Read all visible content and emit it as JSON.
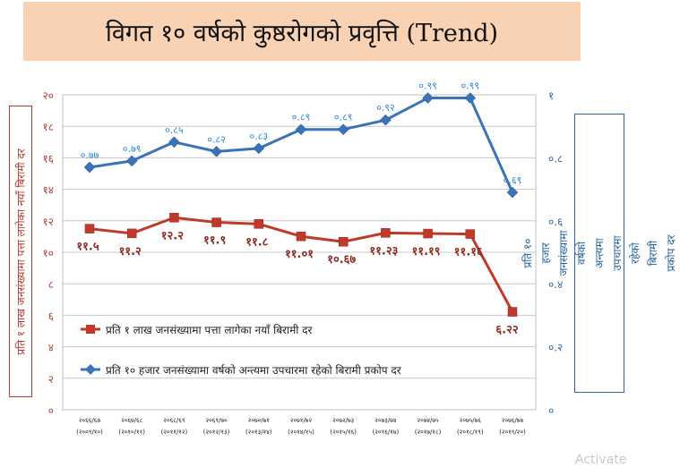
{
  "title": "विगत १० वर्षको कुष्ठरोगको प्रवृत्ति (Trend)",
  "watermark": "Activate",
  "chart_data": {
    "type": "line",
    "categories": [
      [
        "२०६६/६७",
        "(२००९/१०)"
      ],
      [
        "२०६७/६८",
        "(२०१०/११)"
      ],
      [
        "२०६८/६९",
        "(२०११/१२)"
      ],
      [
        "२०६९/७०",
        "(२०१२/१३)"
      ],
      [
        "२०७०/७१",
        "(२०१३/१४)"
      ],
      [
        "२०७१/७२",
        "(२०१४/१५)"
      ],
      [
        "२०७२/७३",
        "(२०१५/१६)"
      ],
      [
        "२०७३/७४",
        "(२०१६/१७)"
      ],
      [
        "२०७४/७५",
        "(२०१७/१८)"
      ],
      [
        "२०७५/७६",
        "(२०१८/१९)"
      ],
      [
        "२०७६/७७",
        "(२०१९/२०)"
      ]
    ],
    "series": [
      {
        "name": "प्रति १ लाख जनसंख्यामा पत्ता लागेका नयाँ बिरामी दर",
        "axis": "left",
        "color": "#c0392b",
        "marker": "square",
        "values": [
          11.5,
          11.2,
          12.2,
          11.9,
          11.8,
          11.01,
          10.67,
          11.23,
          11.19,
          11.16,
          6.22
        ],
        "labels": [
          "११.५",
          "११.२",
          "१२.२",
          "११.९",
          "११.८",
          "११.०१",
          "१०.६७",
          "११.२३",
          "११.१९",
          "११.१६",
          "६.२२"
        ]
      },
      {
        "name": "प्रति १० हजार जनसंख्यामा वर्षको अन्त्यमा उपचारमा रहेको बिरामी प्रकोप  दर",
        "axis": "right",
        "color": "#3b73b9",
        "marker": "diamond",
        "values": [
          0.77,
          0.79,
          0.85,
          0.82,
          0.83,
          0.89,
          0.89,
          0.92,
          0.99,
          0.99,
          0.69
        ],
        "labels": [
          "०.७७",
          "०.७९",
          "०.८५",
          "०.८२",
          "०.८३",
          "०.८९",
          "०.८९",
          "०.९२",
          "०.९९",
          "०.९९",
          "०.६९"
        ]
      }
    ],
    "y_left": {
      "label": "प्रति १ लाख जनसंख्यामा पत्ता लागेका नयाँ बिरामी दर",
      "ylim": [
        0,
        20
      ],
      "ticks": [
        0,
        2,
        4,
        6,
        8,
        10,
        12,
        14,
        16,
        18,
        20
      ],
      "tick_labels": [
        "०",
        "२",
        "४",
        "६",
        "८",
        "१०",
        "१२",
        "१४",
        "१६",
        "१८",
        "२०"
      ],
      "color": "#b03a2e"
    },
    "y_right": {
      "label": "प्रति १० हजार जनसंख्यामा वर्षको अन्त्यमा उपचारमा रहेको बिरामी प्रकोप दर",
      "ylim": [
        0,
        1
      ],
      "ticks": [
        0,
        0.2,
        0.4,
        0.6,
        0.8,
        1
      ],
      "tick_labels": [
        "०",
        "०.२",
        "०.४",
        "०.६",
        "०.८",
        "१"
      ],
      "color": "#2a66a8"
    },
    "grid": "horizontal",
    "legend": "inside-lower-left"
  }
}
